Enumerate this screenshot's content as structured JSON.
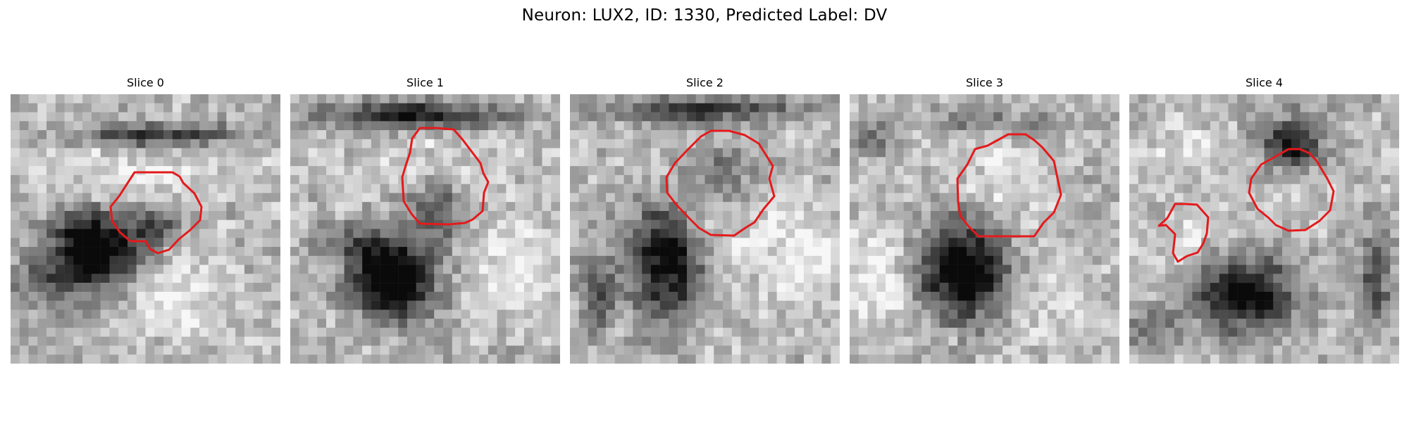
{
  "figure": {
    "title": "Neuron: LUX2, ID: 1330, Predicted Label: DV",
    "colors": {
      "background": "#ffffff",
      "contour": "#e41a1c",
      "text": "#000000"
    },
    "colormap": "grayscale",
    "panels": [
      {
        "title": "Slice 0"
      },
      {
        "title": "Slice 1"
      },
      {
        "title": "Slice 2"
      },
      {
        "title": "Slice 3"
      },
      {
        "title": "Slice 4"
      }
    ]
  }
}
